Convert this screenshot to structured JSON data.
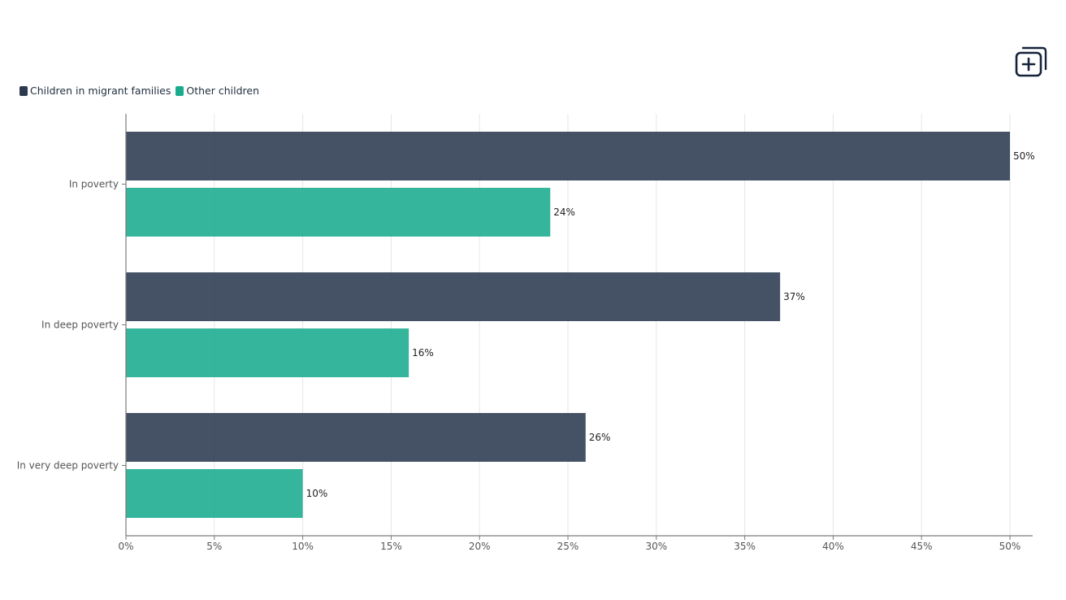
{
  "toolbar": {
    "add_icon": "add-to-collection-icon"
  },
  "colors": {
    "series1": "#2b3a50",
    "series2": "#1aab8f",
    "grid": "#e6e6e6",
    "axis": "#7a7a7a",
    "text": "#555555",
    "label": "#222222"
  },
  "chart_data": {
    "type": "bar",
    "orientation": "horizontal",
    "categories": [
      "In poverty",
      "In deep poverty",
      "In very deep poverty"
    ],
    "series": [
      {
        "name": "Children in migrant families",
        "values": [
          50,
          37,
          26
        ],
        "labels": [
          "50%",
          "37%",
          "26%"
        ]
      },
      {
        "name": "Other children",
        "values": [
          24,
          16,
          10
        ],
        "labels": [
          "24%",
          "16%",
          "10%"
        ]
      }
    ],
    "x_ticks": [
      "0%",
      "5%",
      "10%",
      "15%",
      "20%",
      "25%",
      "30%",
      "35%",
      "40%",
      "45%",
      "50%"
    ],
    "xlim": [
      0,
      50
    ],
    "grid": true,
    "legend_position": "top-left",
    "title": "",
    "xlabel": "",
    "ylabel": ""
  }
}
